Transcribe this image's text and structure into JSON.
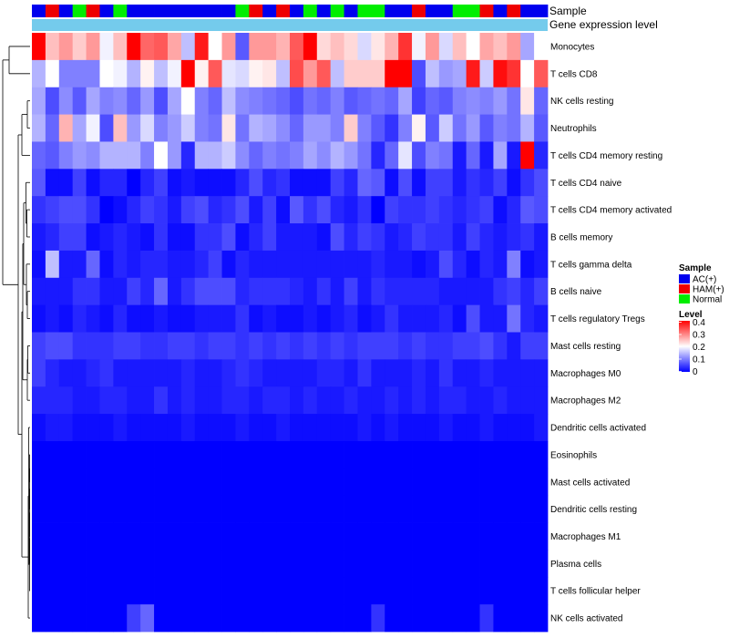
{
  "chart_data": {
    "type": "heatmap",
    "annotation_labels": [
      "Sample",
      "Gene expression level"
    ],
    "sample_groups": [
      "A",
      "H",
      "A",
      "N",
      "H",
      "A",
      "N",
      "A",
      "A",
      "A",
      "A",
      "A",
      "A",
      "A",
      "A",
      "N",
      "H",
      "A",
      "H",
      "A",
      "N",
      "A",
      "N",
      "A",
      "N",
      "N",
      "A",
      "A",
      "H",
      "A",
      "A",
      "N",
      "N",
      "H",
      "A",
      "H",
      "A",
      "A"
    ],
    "rows": [
      "Monocytes",
      "T cells CD8",
      "NK cells resting",
      "Neutrophils",
      "T cells CD4 memory resting",
      "T cells CD4 naive",
      "T cells CD4 memory activated",
      "B cells memory",
      "T cells gamma delta",
      "B cells naive",
      "T cells regulatory  Tregs",
      "Mast cells resting",
      "Macrophages M0",
      "Macrophages M2",
      "Dendritic cells activated",
      "Eosinophils",
      "Mast cells activated",
      "Dendritic cells resting",
      "Macrophages M1",
      "Plasma cells",
      "T cells follicular helper",
      "NK cells activated"
    ],
    "values": [
      [
        0.4,
        0.25,
        0.28,
        0.24,
        0.28,
        0.19,
        0.25,
        0.4,
        0.32,
        0.33,
        0.27,
        0.15,
        0.38,
        0.2,
        0.28,
        0.07,
        0.28,
        0.28,
        0.26,
        0.33,
        0.4,
        0.23,
        0.25,
        0.23,
        0.17,
        0.22,
        0.26,
        0.36,
        0.19,
        0.28,
        0.17,
        0.25,
        0.2,
        0.27,
        0.25,
        0.28,
        0.13,
        0.2
      ],
      [
        0.14,
        0.2,
        0.1,
        0.1,
        0.1,
        0.2,
        0.19,
        0.14,
        0.21,
        0.15,
        0.19,
        0.41,
        0.21,
        0.33,
        0.18,
        0.17,
        0.21,
        0.22,
        0.15,
        0.34,
        0.28,
        0.33,
        0.15,
        0.24,
        0.24,
        0.24,
        0.4,
        0.4,
        0.06,
        0.15,
        0.12,
        0.13,
        0.38,
        0.16,
        0.39,
        0.36,
        0.2,
        0.33
      ],
      [
        0.13,
        0.06,
        0.11,
        0.07,
        0.13,
        0.1,
        0.11,
        0.08,
        0.12,
        0.06,
        0.13,
        0.2,
        0.1,
        0.08,
        0.15,
        0.11,
        0.1,
        0.09,
        0.08,
        0.06,
        0.09,
        0.08,
        0.1,
        0.07,
        0.08,
        0.09,
        0.08,
        0.13,
        0.05,
        0.08,
        0.07,
        0.1,
        0.11,
        0.1,
        0.12,
        0.09,
        0.22,
        0.08
      ],
      [
        0.14,
        0.08,
        0.26,
        0.13,
        0.19,
        0.06,
        0.25,
        0.12,
        0.17,
        0.1,
        0.12,
        0.16,
        0.1,
        0.09,
        0.22,
        0.09,
        0.14,
        0.13,
        0.11,
        0.08,
        0.12,
        0.12,
        0.1,
        0.24,
        0.1,
        0.07,
        0.04,
        0.1,
        0.21,
        0.07,
        0.16,
        0.09,
        0.12,
        0.07,
        0.1,
        0.09,
        0.14,
        0.07
      ],
      [
        0.08,
        0.07,
        0.1,
        0.12,
        0.11,
        0.14,
        0.14,
        0.14,
        0.1,
        0.2,
        0.12,
        0.03,
        0.14,
        0.14,
        0.16,
        0.11,
        0.08,
        0.1,
        0.09,
        0.1,
        0.13,
        0.11,
        0.14,
        0.12,
        0.09,
        0.03,
        0.08,
        0.18,
        0.06,
        0.1,
        0.09,
        0.02,
        0.08,
        0.02,
        0.13,
        0.02,
        0.4,
        0.03
      ],
      [
        0.07,
        0.01,
        0.01,
        0.05,
        0.01,
        0.03,
        0.03,
        0.0,
        0.03,
        0.05,
        0.01,
        0.02,
        0.01,
        0.01,
        0.01,
        0.03,
        0.06,
        0.03,
        0.04,
        0.01,
        0.01,
        0.01,
        0.05,
        0.03,
        0.08,
        0.07,
        0.01,
        0.06,
        0.01,
        0.05,
        0.05,
        0.02,
        0.04,
        0.03,
        0.05,
        0.01,
        0.04,
        0.06
      ],
      [
        0.04,
        0.05,
        0.06,
        0.06,
        0.04,
        0.0,
        0.01,
        0.03,
        0.05,
        0.04,
        0.02,
        0.05,
        0.06,
        0.03,
        0.04,
        0.06,
        0.02,
        0.05,
        0.01,
        0.07,
        0.04,
        0.06,
        0.03,
        0.02,
        0.04,
        0.0,
        0.05,
        0.04,
        0.04,
        0.05,
        0.04,
        0.03,
        0.04,
        0.05,
        0.01,
        0.03,
        0.07,
        0.06
      ],
      [
        0.02,
        0.03,
        0.05,
        0.05,
        0.01,
        0.02,
        0.03,
        0.02,
        0.01,
        0.04,
        0.01,
        0.01,
        0.04,
        0.04,
        0.06,
        0.01,
        0.03,
        0.05,
        0.02,
        0.02,
        0.02,
        0.01,
        0.06,
        0.03,
        0.05,
        0.04,
        0.02,
        0.03,
        0.05,
        0.04,
        0.04,
        0.02,
        0.05,
        0.03,
        0.02,
        0.03,
        0.04,
        0.02
      ],
      [
        0.01,
        0.15,
        0.02,
        0.02,
        0.08,
        0.01,
        0.03,
        0.02,
        0.03,
        0.03,
        0.02,
        0.02,
        0.03,
        0.05,
        0.01,
        0.03,
        0.02,
        0.02,
        0.02,
        0.02,
        0.02,
        0.02,
        0.02,
        0.02,
        0.02,
        0.03,
        0.02,
        0.02,
        0.01,
        0.02,
        0.06,
        0.03,
        0.01,
        0.03,
        0.02,
        0.1,
        0.01,
        0.02
      ],
      [
        0.02,
        0.02,
        0.02,
        0.04,
        0.04,
        0.02,
        0.02,
        0.05,
        0.03,
        0.08,
        0.02,
        0.04,
        0.06,
        0.06,
        0.06,
        0.03,
        0.04,
        0.04,
        0.04,
        0.03,
        0.02,
        0.04,
        0.02,
        0.05,
        0.02,
        0.04,
        0.03,
        0.03,
        0.03,
        0.03,
        0.02,
        0.02,
        0.02,
        0.02,
        0.04,
        0.05,
        0.03,
        0.05
      ],
      [
        0.01,
        0.02,
        0.01,
        0.03,
        0.02,
        0.01,
        0.03,
        0.01,
        0.01,
        0.02,
        0.01,
        0.01,
        0.02,
        0.02,
        0.02,
        0.04,
        0.01,
        0.02,
        0.01,
        0.01,
        0.02,
        0.01,
        0.02,
        0.03,
        0.01,
        0.02,
        0.04,
        0.02,
        0.02,
        0.02,
        0.03,
        0.01,
        0.06,
        0.02,
        0.02,
        0.09,
        0.03,
        0.02
      ],
      [
        0.05,
        0.06,
        0.06,
        0.04,
        0.04,
        0.04,
        0.05,
        0.05,
        0.04,
        0.04,
        0.05,
        0.05,
        0.04,
        0.05,
        0.05,
        0.04,
        0.05,
        0.04,
        0.05,
        0.04,
        0.05,
        0.04,
        0.05,
        0.04,
        0.05,
        0.05,
        0.05,
        0.04,
        0.05,
        0.04,
        0.04,
        0.05,
        0.05,
        0.06,
        0.04,
        0.02,
        0.05,
        0.05
      ],
      [
        0.05,
        0.03,
        0.02,
        0.02,
        0.03,
        0.04,
        0.02,
        0.02,
        0.02,
        0.02,
        0.02,
        0.03,
        0.02,
        0.02,
        0.03,
        0.04,
        0.03,
        0.02,
        0.02,
        0.02,
        0.02,
        0.03,
        0.03,
        0.02,
        0.04,
        0.02,
        0.02,
        0.02,
        0.03,
        0.02,
        0.04,
        0.02,
        0.02,
        0.03,
        0.02,
        0.02,
        0.02,
        0.02
      ],
      [
        0.03,
        0.03,
        0.03,
        0.02,
        0.02,
        0.03,
        0.03,
        0.02,
        0.02,
        0.04,
        0.02,
        0.03,
        0.02,
        0.02,
        0.03,
        0.03,
        0.02,
        0.03,
        0.03,
        0.02,
        0.03,
        0.02,
        0.02,
        0.03,
        0.02,
        0.02,
        0.03,
        0.02,
        0.03,
        0.02,
        0.03,
        0.03,
        0.02,
        0.02,
        0.03,
        0.02,
        0.02,
        0.02
      ],
      [
        0.01,
        0.02,
        0.02,
        0.01,
        0.01,
        0.01,
        0.02,
        0.01,
        0.01,
        0.01,
        0.01,
        0.02,
        0.01,
        0.01,
        0.01,
        0.02,
        0.01,
        0.01,
        0.02,
        0.01,
        0.01,
        0.01,
        0.01,
        0.01,
        0.02,
        0.01,
        0.02,
        0.01,
        0.01,
        0.01,
        0.02,
        0.01,
        0.01,
        0.02,
        0.01,
        0.01,
        0.01,
        0.02
      ],
      [
        0,
        0,
        0,
        0,
        0,
        0,
        0,
        0,
        0,
        0,
        0,
        0,
        0,
        0,
        0,
        0,
        0,
        0,
        0,
        0,
        0,
        0,
        0,
        0,
        0,
        0,
        0,
        0,
        0,
        0,
        0,
        0,
        0,
        0,
        0,
        0,
        0,
        0
      ],
      [
        0,
        0,
        0,
        0,
        0,
        0,
        0,
        0,
        0,
        0,
        0,
        0,
        0,
        0,
        0,
        0,
        0,
        0,
        0,
        0,
        0,
        0,
        0,
        0,
        0,
        0,
        0,
        0,
        0,
        0,
        0,
        0,
        0,
        0,
        0,
        0,
        0,
        0
      ],
      [
        0,
        0,
        0,
        0,
        0,
        0,
        0,
        0,
        0,
        0,
        0,
        0,
        0,
        0,
        0,
        0,
        0,
        0,
        0,
        0,
        0,
        0,
        0,
        0,
        0,
        0,
        0,
        0,
        0,
        0,
        0,
        0,
        0,
        0,
        0,
        0,
        0,
        0
      ],
      [
        0,
        0,
        0,
        0,
        0,
        0,
        0,
        0,
        0,
        0,
        0,
        0,
        0,
        0,
        0,
        0,
        0,
        0,
        0,
        0,
        0,
        0,
        0,
        0,
        0,
        0,
        0,
        0,
        0,
        0,
        0,
        0,
        0,
        0,
        0,
        0,
        0,
        0
      ],
      [
        0,
        0,
        0,
        0,
        0,
        0,
        0,
        0,
        0,
        0,
        0,
        0,
        0,
        0,
        0,
        0,
        0,
        0,
        0,
        0,
        0,
        0,
        0,
        0,
        0,
        0,
        0,
        0,
        0,
        0,
        0,
        0,
        0,
        0,
        0,
        0,
        0,
        0
      ],
      [
        0,
        0,
        0,
        0,
        0,
        0,
        0,
        0,
        0,
        0,
        0,
        0,
        0,
        0,
        0,
        0,
        0,
        0,
        0,
        0,
        0,
        0,
        0,
        0,
        0,
        0,
        0,
        0,
        0,
        0,
        0,
        0,
        0,
        0,
        0,
        0,
        0,
        0
      ],
      [
        0,
        0,
        0,
        0,
        0,
        0,
        0,
        0.05,
        0.08,
        0,
        0,
        0,
        0,
        0,
        0,
        0,
        0,
        0,
        0,
        0,
        0,
        0,
        0,
        0,
        0,
        0.04,
        0,
        0,
        0,
        0,
        0,
        0,
        0,
        0.04,
        0,
        0,
        0,
        0
      ]
    ],
    "color_scale": {
      "low": "#0000ff",
      "mid": "#ffffff",
      "high": "#ff0000",
      "domain": [
        0,
        0.2,
        0.4
      ]
    },
    "legends": {
      "sample": {
        "title": "Sample",
        "entries": [
          {
            "code": "A",
            "label": "AC(+)",
            "color": "#0000ee"
          },
          {
            "code": "H",
            "label": "HAM(+)",
            "color": "#ee0000"
          },
          {
            "code": "N",
            "label": "Normal",
            "color": "#00ee00"
          }
        ]
      },
      "level": {
        "title": "Level",
        "ticks": [
          "0.4",
          "0.3",
          "0.2",
          "0.1",
          "0"
        ]
      }
    },
    "expression_bar_color": "#74cbec"
  }
}
